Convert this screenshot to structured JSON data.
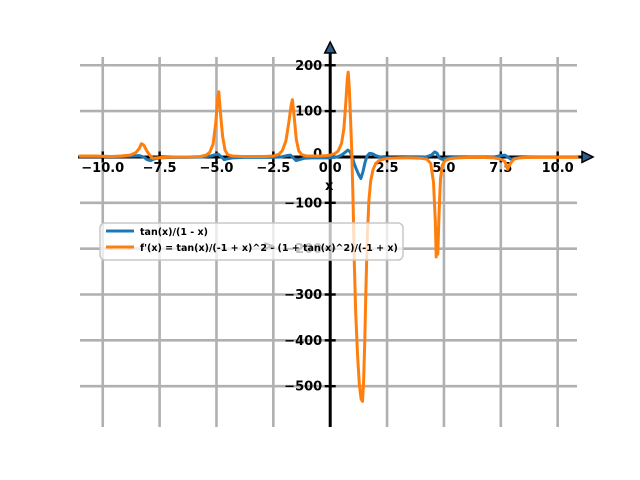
{
  "figure": {
    "background": "#ffffff",
    "xlabel": "x",
    "ylabel": "y"
  },
  "chart_data": {
    "type": "line",
    "title": "",
    "xlabel": "x",
    "ylabel": "y",
    "xlim": [
      -11.0,
      10.85
    ],
    "ylim": [
      -589,
      218
    ],
    "grid": true,
    "grid_color": "#b0b0b0",
    "axis_color": "#000000",
    "arrow_fill": "#2b5d8c",
    "legend_position": "center-left",
    "legend_bg_alpha": 0.75,
    "xticks": {
      "values": [
        -10,
        -7.5,
        -5,
        -2.5,
        0,
        2.5,
        5,
        7.5,
        10
      ],
      "labels": [
        "−10.0",
        "−7.5",
        "−5.0",
        "−2.5",
        "0.0",
        "2.5",
        "5.0",
        "7.5",
        "10.0"
      ]
    },
    "yticks": {
      "values": [
        200,
        100,
        0,
        -100,
        -200,
        -300,
        -400,
        -500
      ],
      "labels": [
        "200",
        "100",
        "0",
        "−100",
        "−200",
        "−300",
        "−400",
        "−500"
      ]
    },
    "legend": [
      {
        "label": "tan(x)/(1 - x)",
        "color": "#1f77b4"
      },
      {
        "label": "f'(x) = tan(x)/(-1 + x)^2 - (1 + tan(x)^2)/(-1 + x)",
        "color": "#ff7f0e"
      }
    ],
    "series": [
      {
        "name": "tan(x)/(1 - x)",
        "color": "#1f77b4",
        "points": [
          [
            -11,
            1
          ],
          [
            -10,
            1
          ],
          [
            -9.2,
            1
          ],
          [
            -8.7,
            2
          ],
          [
            -8.4,
            3
          ],
          [
            -8.2,
            0
          ],
          [
            -8.05,
            -6
          ],
          [
            -7.9,
            -8
          ],
          [
            -7.72,
            -4
          ],
          [
            -7.5,
            -2
          ],
          [
            -7,
            -1
          ],
          [
            -6.3,
            -1
          ],
          [
            -5.6,
            0
          ],
          [
            -5.25,
            2
          ],
          [
            -5.05,
            5
          ],
          [
            -4.92,
            6
          ],
          [
            -4.78,
            0
          ],
          [
            -4.66,
            -6
          ],
          [
            -4.52,
            -4
          ],
          [
            -4.3,
            -2
          ],
          [
            -3.8,
            -1
          ],
          [
            -3.2,
            -1
          ],
          [
            -2.6,
            -1
          ],
          [
            -2.15,
            0
          ],
          [
            -1.9,
            3
          ],
          [
            -1.75,
            4
          ],
          [
            -1.62,
            -2
          ],
          [
            -1.5,
            -8
          ],
          [
            -1.36,
            -6
          ],
          [
            -1.15,
            -3
          ],
          [
            -0.8,
            -2
          ],
          [
            -0.4,
            -2
          ],
          [
            0,
            -2
          ],
          [
            0.3,
            0
          ],
          [
            0.5,
            4
          ],
          [
            0.65,
            10
          ],
          [
            0.78,
            15
          ],
          [
            0.88,
            11
          ],
          [
            0.97,
            0
          ],
          [
            1.05,
            -14
          ],
          [
            1.15,
            -27
          ],
          [
            1.25,
            -38
          ],
          [
            1.35,
            -47
          ],
          [
            1.44,
            -32
          ],
          [
            1.53,
            -12
          ],
          [
            1.62,
            2
          ],
          [
            1.73,
            8
          ],
          [
            1.85,
            7
          ],
          [
            2,
            3
          ],
          [
            2.2,
            0
          ],
          [
            2.5,
            -2
          ],
          [
            2.9,
            -2
          ],
          [
            3.4,
            -1
          ],
          [
            3.9,
            -1
          ],
          [
            4.2,
            0
          ],
          [
            4.45,
            4
          ],
          [
            4.6,
            11
          ],
          [
            4.7,
            8
          ],
          [
            4.8,
            -2
          ],
          [
            4.9,
            -5
          ],
          [
            5.05,
            -3
          ],
          [
            5.4,
            -1
          ],
          [
            6,
            -1
          ],
          [
            6.7,
            -1
          ],
          [
            7.2,
            0
          ],
          [
            7.5,
            3
          ],
          [
            7.68,
            4
          ],
          [
            7.82,
            -1
          ],
          [
            7.95,
            -5
          ],
          [
            8.12,
            -3
          ],
          [
            8.5,
            -1
          ],
          [
            9.2,
            0
          ],
          [
            10,
            0
          ],
          [
            10.85,
            0
          ]
        ]
      },
      {
        "name": "f'(x) = tan(x)/(-1 + x)^2 - (1 + tan(x)^2)/(-1 + x)",
        "color": "#ff7f0e",
        "points": [
          [
            -11,
            2
          ],
          [
            -10.3,
            2
          ],
          [
            -9.6,
            1
          ],
          [
            -9.2,
            2
          ],
          [
            -8.8,
            4
          ],
          [
            -8.55,
            9
          ],
          [
            -8.4,
            18
          ],
          [
            -8.3,
            29
          ],
          [
            -8.2,
            26
          ],
          [
            -8.05,
            12
          ],
          [
            -7.92,
            3
          ],
          [
            -7.8,
            -3
          ],
          [
            -7.62,
            -2
          ],
          [
            -7.3,
            -1
          ],
          [
            -6.8,
            0
          ],
          [
            -6.2,
            0
          ],
          [
            -5.7,
            1
          ],
          [
            -5.45,
            4
          ],
          [
            -5.3,
            10
          ],
          [
            -5.15,
            28
          ],
          [
            -5.03,
            75
          ],
          [
            -4.95,
            128
          ],
          [
            -4.9,
            142
          ],
          [
            -4.83,
            100
          ],
          [
            -4.73,
            45
          ],
          [
            -4.62,
            14
          ],
          [
            -4.5,
            5
          ],
          [
            -4.3,
            2
          ],
          [
            -3.9,
            1
          ],
          [
            -3.4,
            1
          ],
          [
            -2.9,
            1
          ],
          [
            -2.5,
            2
          ],
          [
            -2.25,
            6
          ],
          [
            -2.1,
            14
          ],
          [
            -1.95,
            35
          ],
          [
            -1.82,
            75
          ],
          [
            -1.72,
            112
          ],
          [
            -1.66,
            125
          ],
          [
            -1.58,
            85
          ],
          [
            -1.49,
            38
          ],
          [
            -1.38,
            13
          ],
          [
            -1.25,
            5
          ],
          [
            -1.05,
            2
          ],
          [
            -0.75,
            2
          ],
          [
            -0.45,
            2
          ],
          [
            -0.2,
            3
          ],
          [
            0,
            4
          ],
          [
            0.2,
            7
          ],
          [
            0.35,
            13
          ],
          [
            0.5,
            30
          ],
          [
            0.6,
            62
          ],
          [
            0.68,
            115
          ],
          [
            0.75,
            170
          ],
          [
            0.79,
            185
          ],
          [
            0.84,
            150
          ],
          [
            0.9,
            75
          ],
          [
            0.95,
            10
          ],
          [
            1,
            -90
          ],
          [
            1.06,
            -230
          ],
          [
            1.12,
            -340
          ],
          [
            1.2,
            -430
          ],
          [
            1.28,
            -495
          ],
          [
            1.36,
            -528
          ],
          [
            1.42,
            -533
          ],
          [
            1.47,
            -490
          ],
          [
            1.52,
            -400
          ],
          [
            1.57,
            -290
          ],
          [
            1.63,
            -175
          ],
          [
            1.7,
            -95
          ],
          [
            1.78,
            -52
          ],
          [
            1.88,
            -28
          ],
          [
            2,
            -14
          ],
          [
            2.15,
            -8
          ],
          [
            2.35,
            -5
          ],
          [
            2.6,
            -3
          ],
          [
            3,
            -2
          ],
          [
            3.5,
            -2
          ],
          [
            4,
            -3
          ],
          [
            4.25,
            -5
          ],
          [
            4.42,
            -14
          ],
          [
            4.54,
            -55
          ],
          [
            4.62,
            -140
          ],
          [
            4.66,
            -218
          ],
          [
            4.69,
            -155
          ],
          [
            4.73,
            -212
          ],
          [
            4.79,
            -115
          ],
          [
            4.85,
            -48
          ],
          [
            4.93,
            -18
          ],
          [
            5.05,
            -8
          ],
          [
            5.25,
            -4
          ],
          [
            5.6,
            -2
          ],
          [
            6.1,
            -1
          ],
          [
            6.7,
            -1
          ],
          [
            7.2,
            -2
          ],
          [
            7.5,
            -5
          ],
          [
            7.68,
            -10
          ],
          [
            7.8,
            -27
          ],
          [
            7.92,
            -14
          ],
          [
            8.08,
            -5
          ],
          [
            8.3,
            -2
          ],
          [
            8.7,
            -1
          ],
          [
            9.3,
            -1
          ],
          [
            10,
            -1
          ],
          [
            10.85,
            -1
          ]
        ]
      }
    ]
  }
}
